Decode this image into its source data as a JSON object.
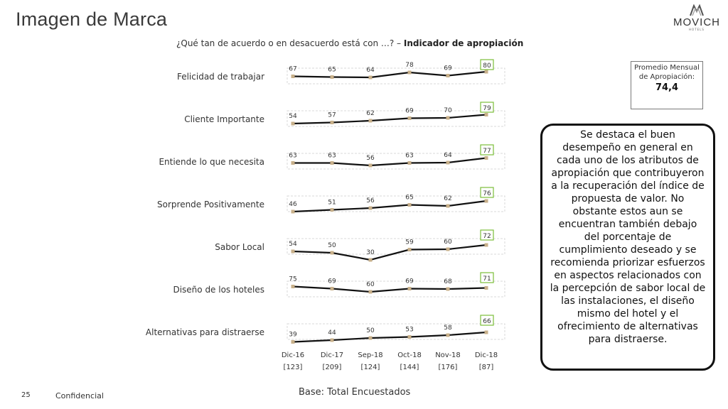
{
  "header": {
    "title": "Imagen de Marca",
    "question_prefix": "¿Qué tan de acuerdo o en desacuerdo está con …? – ",
    "question_bold": "Indicador de apropiación",
    "logo_text": "MOVICH",
    "logo_subtext": "HOTELS"
  },
  "average": {
    "label": "Promedio Mensual de Apropiación:",
    "value": "74,4"
  },
  "callout_text": "Se destaca el buen desempeño en general en cada uno de los atributos de apropiación que contribuyeron a la recuperación del índice de propuesta de valor. No obstante estos aun se encuentran también debajo del porcentaje de cumplimiento deseado y se recomienda priorizar esfuerzos en aspectos relacionados con la percepción de sabor local de las instalaciones, el diseño mismo del hotel y el ofrecimiento de alternativas para distraerse.",
  "footer": {
    "page_number": "25",
    "confidential": "Confidencial",
    "base": "Base: Total Encuestados"
  },
  "chart_data": {
    "type": "line",
    "categories": [
      "Dic-16",
      "Dic-17",
      "Sep-18",
      "Oct-18",
      "Nov-18",
      "Dic-18"
    ],
    "sample_sizes": [
      "[123]",
      "[209]",
      "[124]",
      "[144]",
      "[176]",
      "[87]"
    ],
    "highlight_last": true,
    "highlight_color": "#7bbf3a",
    "line_color": "#111111",
    "marker_color": "#c8b08a",
    "series": [
      {
        "name": "Felicidad de trabajar",
        "values": [
          67,
          65,
          64,
          78,
          69,
          80
        ]
      },
      {
        "name": "Cliente Importante",
        "values": [
          54,
          57,
          62,
          69,
          70,
          79
        ]
      },
      {
        "name": "Entiende lo que necesita",
        "values": [
          63,
          63,
          56,
          63,
          64,
          77
        ]
      },
      {
        "name": "Sorprende Positivamente",
        "values": [
          46,
          51,
          56,
          65,
          62,
          76
        ]
      },
      {
        "name": "Sabor Local",
        "values": [
          54,
          50,
          30,
          59,
          60,
          72
        ]
      },
      {
        "name": "Diseño de los hoteles",
        "values": [
          75,
          69,
          60,
          69,
          68,
          71
        ]
      },
      {
        "name": "Alternativas para distraerse",
        "values": [
          39,
          44,
          50,
          53,
          58,
          66
        ]
      }
    ]
  }
}
